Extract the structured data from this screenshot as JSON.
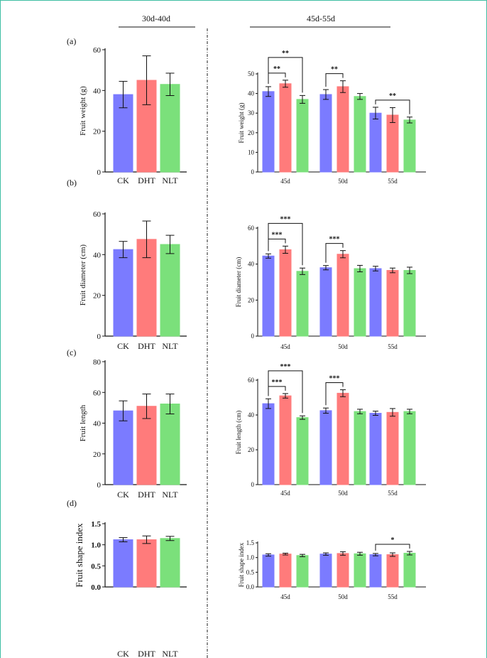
{
  "header": {
    "left_group": "30d-40d",
    "right_group": "45d-55d"
  },
  "colors": {
    "CK": "#7b7bff",
    "DHT": "#ff7b7b",
    "NLT": "#7be07b",
    "axis": "#111111",
    "frame": "#3fbfa3"
  },
  "chart_data": [
    {
      "panel": "(a)",
      "type": "bar",
      "xlabel": "",
      "ylabel": "Fruit weight (g)",
      "ylim": [
        0,
        60
      ],
      "yticks": [
        "0",
        "20",
        "40",
        "60"
      ],
      "categories": [
        "CK",
        "DHT",
        "NLT"
      ],
      "values": [
        38,
        45,
        43
      ],
      "errors": [
        6.5,
        12,
        5.5
      ]
    },
    {
      "panel": "(a)",
      "type": "bar",
      "xlabel": "",
      "ylabel": "Fruit weight (g)",
      "ylim": [
        0,
        50
      ],
      "yticks": [
        "0",
        "10",
        "20",
        "30",
        "40",
        "50"
      ],
      "categories": [
        "45d",
        "50d",
        "55d"
      ],
      "series": [
        {
          "values": [
            41,
            39.5,
            30
          ],
          "errors": [
            2.5,
            2.5,
            3
          ]
        },
        {
          "values": [
            45,
            43.5,
            29
          ],
          "errors": [
            1.8,
            3,
            3.8
          ]
        },
        {
          "values": [
            37,
            38.5,
            26.5
          ],
          "errors": [
            2,
            1.5,
            1.5
          ]
        }
      ],
      "annotations": [
        {
          "label": "**",
          "group": 0,
          "from": 0,
          "to": 1
        },
        {
          "label": "**",
          "group": 0,
          "from": 0,
          "to": 2
        },
        {
          "label": "**",
          "group": 1,
          "from": 0,
          "to": 1
        },
        {
          "label": "**",
          "group": 2,
          "from": 0,
          "to": 2
        }
      ]
    },
    {
      "panel": "(b)",
      "type": "bar",
      "xlabel": "",
      "ylabel": "Fruit diameter (cm)",
      "ylim": [
        0,
        60
      ],
      "yticks": [
        "0",
        "20",
        "40",
        "60"
      ],
      "categories": [
        "CK",
        "DHT",
        "NLT"
      ],
      "values": [
        42.5,
        47.5,
        45
      ],
      "errors": [
        4,
        9,
        4.5
      ]
    },
    {
      "panel": "(b)",
      "type": "bar",
      "xlabel": "",
      "ylabel": "Fruit diameter (cm)",
      "ylim": [
        0,
        60
      ],
      "yticks": [
        "0",
        "20",
        "40",
        "60"
      ],
      "categories": [
        "45d",
        "50d",
        "55d"
      ],
      "series": [
        {
          "values": [
            44.5,
            38,
            37.5
          ],
          "errors": [
            1.2,
            1.2,
            1.3
          ]
        },
        {
          "values": [
            48,
            45.5,
            36.5
          ],
          "errors": [
            2,
            2,
            1.3
          ]
        },
        {
          "values": [
            36,
            37.5,
            36.5
          ],
          "errors": [
            1.8,
            1.8,
            1.8
          ]
        }
      ],
      "annotations": [
        {
          "label": "***",
          "group": 0,
          "from": 0,
          "to": 1
        },
        {
          "label": "***",
          "group": 0,
          "from": 0,
          "to": 2
        },
        {
          "label": "***",
          "group": 1,
          "from": 0,
          "to": 1
        }
      ]
    },
    {
      "panel": "(c)",
      "type": "bar",
      "xlabel": "",
      "ylabel": "Fruit length",
      "ylim": [
        0,
        80
      ],
      "yticks": [
        "0",
        "20",
        "40",
        "60",
        "80"
      ],
      "categories": [
        "CK",
        "DHT",
        "NLT"
      ],
      "values": [
        48,
        51,
        52.5
      ],
      "errors": [
        6.5,
        8,
        6.5
      ]
    },
    {
      "panel": "(c)",
      "type": "bar",
      "xlabel": "",
      "ylabel": "Fruit length (cm)",
      "ylim": [
        0,
        60
      ],
      "yticks": [
        "0",
        "20",
        "40",
        "60"
      ],
      "categories": [
        "45d",
        "50d",
        "55d"
      ],
      "series": [
        {
          "values": [
            46.5,
            42.5,
            41
          ],
          "errors": [
            2.8,
            1.5,
            1.2
          ]
        },
        {
          "values": [
            51,
            52.5,
            41.5
          ],
          "errors": [
            1.3,
            2,
            2.2
          ]
        },
        {
          "values": [
            38.5,
            42,
            42
          ],
          "errors": [
            1,
            1.3,
            1.3
          ]
        }
      ],
      "annotations": [
        {
          "label": "***",
          "group": 0,
          "from": 0,
          "to": 1
        },
        {
          "label": "***",
          "group": 0,
          "from": 0,
          "to": 2
        },
        {
          "label": "***",
          "group": 1,
          "from": 0,
          "to": 1
        }
      ]
    },
    {
      "panel": "(d)",
      "type": "bar",
      "xlabel": "",
      "ylabel": "Fruit shape index",
      "ylim": [
        0,
        1.5
      ],
      "yticks": [
        "0.0",
        "0.5",
        "1.0",
        "1.5"
      ],
      "categories": [
        "CK",
        "DHT",
        "NLT"
      ],
      "values": [
        1.12,
        1.12,
        1.15
      ],
      "errors": [
        0.05,
        0.09,
        0.05
      ]
    },
    {
      "panel": "(d)",
      "type": "bar",
      "xlabel": "",
      "ylabel": "Fruit shape index",
      "ylim": [
        0,
        1.5
      ],
      "yticks": [
        "0.0",
        "0.5",
        "1.0",
        "1.5"
      ],
      "categories": [
        "45d",
        "50d",
        "55d"
      ],
      "series": [
        {
          "values": [
            1.09,
            1.12,
            1.1
          ],
          "errors": [
            0.04,
            0.04,
            0.04
          ]
        },
        {
          "values": [
            1.12,
            1.14,
            1.1
          ],
          "errors": [
            0.03,
            0.06,
            0.06
          ]
        },
        {
          "values": [
            1.07,
            1.13,
            1.15
          ],
          "errors": [
            0.04,
            0.05,
            0.06
          ]
        }
      ],
      "annotations": [
        {
          "label": "*",
          "group": 2,
          "from": 0,
          "to": 2
        }
      ]
    }
  ]
}
